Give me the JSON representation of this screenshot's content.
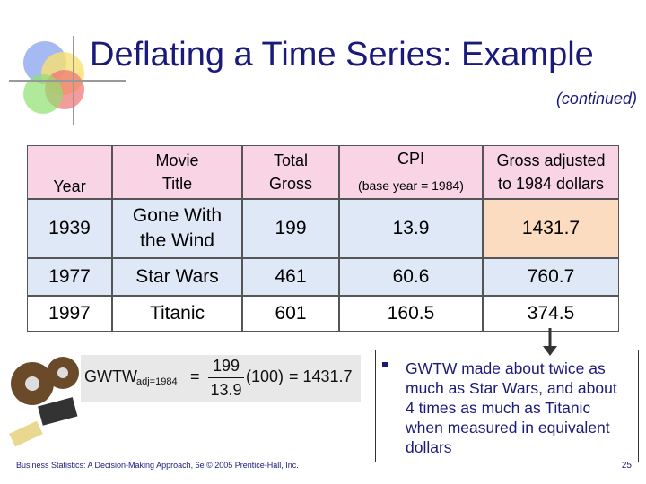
{
  "header": {
    "title": "Deflating a Time Series: Example",
    "subtitle": "(continued)"
  },
  "table": {
    "headers": [
      [
        "Year"
      ],
      [
        "Movie",
        "Title"
      ],
      [
        "Total",
        "Gross"
      ],
      [
        "CPI",
        "(base year = 1984)"
      ],
      [
        "Gross adjusted",
        "to 1984 dollars"
      ]
    ],
    "rows": [
      [
        "1939",
        "Gone With the Wind",
        "199",
        "13.9",
        "1431.7"
      ],
      [
        "1977",
        "Star Wars",
        "461",
        "60.6",
        "760.7"
      ],
      [
        "1997",
        "Titanic",
        "601",
        "160.5",
        "374.5"
      ]
    ]
  },
  "formula": {
    "lhs": "GWTW",
    "sub": "adj=1984",
    "eq": "=",
    "num": "199",
    "den": "13.9",
    "factor": "(100)",
    "result": "= 1431.7"
  },
  "bullet": "GWTW made about twice as much as Star Wars, and about 4 times as much as Titanic when measured in equivalent dollars",
  "footer": {
    "source": "Business Statistics: A Decision-Making Approach, 6e © 2005 Prentice-Hall, Inc.",
    "page": "25"
  }
}
